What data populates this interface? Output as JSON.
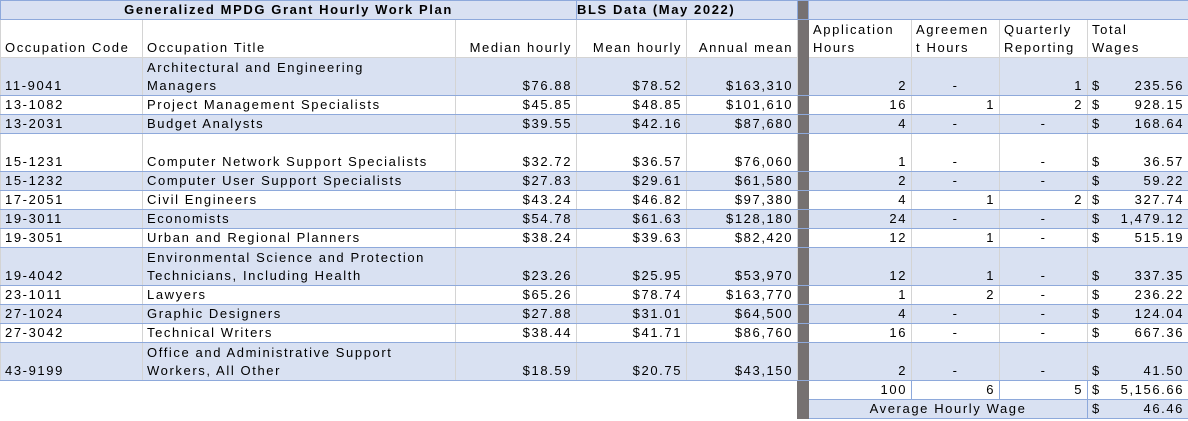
{
  "header": {
    "plan_title": "Generalized MPDG Grant Hourly Work Plan",
    "bls_title": "BLS Data (May 2022)"
  },
  "columns": {
    "code": "Occupation Code",
    "title": "Occupation Title",
    "median": "Median hourly",
    "mean": "Mean hourly",
    "annual": "Annual mean",
    "application": "Application\nHours",
    "agreement": "Agreemen\nt Hours",
    "quarterly": "Quarterly\nReporting",
    "total": "Total\nWages"
  },
  "rows": [
    {
      "code": "11-9041",
      "title": "Architectural and Engineering\nManagers",
      "median": "$76.88",
      "mean": "$78.52",
      "annual": "$163,310",
      "application": "2",
      "agreement": "-",
      "quarterly": "1",
      "total": "235.56"
    },
    {
      "code": "13-1082",
      "title": "Project Management Specialists",
      "median": "$45.85",
      "mean": "$48.85",
      "annual": "$101,610",
      "application": "16",
      "agreement": "1",
      "quarterly": "2",
      "total": "928.15"
    },
    {
      "code": "13-2031",
      "title": "Budget Analysts",
      "median": "$39.55",
      "mean": "$42.16",
      "annual": "$87,680",
      "application": "4",
      "agreement": "-",
      "quarterly": "-",
      "total": "168.64"
    },
    {
      "code": "15-1231",
      "title": "Computer Network Support Specialists",
      "median": "$32.72",
      "mean": "$36.57",
      "annual": "$76,060",
      "application": "1",
      "agreement": "-",
      "quarterly": "-",
      "total": "36.57"
    },
    {
      "code": "15-1232",
      "title": "Computer User Support Specialists",
      "median": "$27.83",
      "mean": "$29.61",
      "annual": "$61,580",
      "application": "2",
      "agreement": "-",
      "quarterly": "-",
      "total": "59.22"
    },
    {
      "code": "17-2051",
      "title": "Civil Engineers",
      "median": "$43.24",
      "mean": "$46.82",
      "annual": "$97,380",
      "application": "4",
      "agreement": "1",
      "quarterly": "2",
      "total": "327.74"
    },
    {
      "code": "19-3011",
      "title": "Economists",
      "median": "$54.78",
      "mean": "$61.63",
      "annual": "$128,180",
      "application": "24",
      "agreement": "-",
      "quarterly": "-",
      "total": "1,479.12"
    },
    {
      "code": "19-3051",
      "title": "Urban and Regional Planners",
      "median": "$38.24",
      "mean": "$39.63",
      "annual": "$82,420",
      "application": "12",
      "agreement": "1",
      "quarterly": "-",
      "total": "515.19"
    },
    {
      "code": "19-4042",
      "title": "Environmental Science and Protection\nTechnicians, Including Health",
      "median": "$23.26",
      "mean": "$25.95",
      "annual": "$53,970",
      "application": "12",
      "agreement": "1",
      "quarterly": "-",
      "total": "337.35"
    },
    {
      "code": "23-1011",
      "title": "Lawyers",
      "median": "$65.26",
      "mean": "$78.74",
      "annual": "$163,770",
      "application": "1",
      "agreement": "2",
      "quarterly": "-",
      "total": "236.22"
    },
    {
      "code": "27-1024",
      "title": "Graphic Designers",
      "median": "$27.88",
      "mean": "$31.01",
      "annual": "$64,500",
      "application": "4",
      "agreement": "-",
      "quarterly": "-",
      "total": "124.04"
    },
    {
      "code": "27-3042",
      "title": "Technical Writers",
      "median": "$38.44",
      "mean": "$41.71",
      "annual": "$86,760",
      "application": "16",
      "agreement": "-",
      "quarterly": "-",
      "total": "667.36"
    },
    {
      "code": "43-9199",
      "title": "Office and Administrative Support\nWorkers, All Other",
      "median": "$18.59",
      "mean": "$20.75",
      "annual": "$43,150",
      "application": "2",
      "agreement": "-",
      "quarterly": "-",
      "total": "41.50"
    }
  ],
  "currency_symbol": "$",
  "totals": {
    "application": "100",
    "agreement": "6",
    "quarterly": "5",
    "total": "5,156.66"
  },
  "average": {
    "label": "Average Hourly Wage",
    "value": "46.46"
  },
  "colors": {
    "row_shade": "#d9e1f2",
    "border_blue": "#8ea9db",
    "separator": "#767171"
  }
}
